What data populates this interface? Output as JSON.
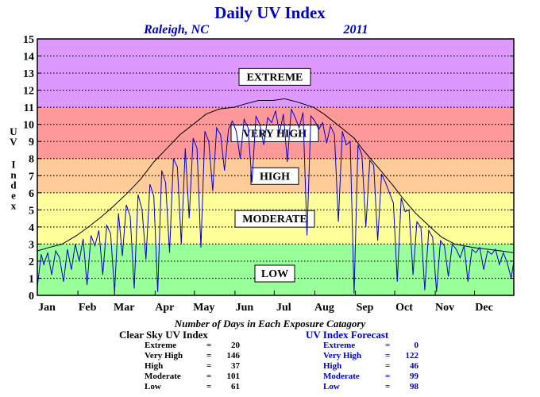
{
  "chart_data": {
    "type": "line",
    "title": "Daily UV Index",
    "location": "Raleigh, NC",
    "year": "2011",
    "ylabel": "UV Index",
    "ylim": [
      0,
      15
    ],
    "yticks": [
      0,
      1,
      2,
      3,
      4,
      5,
      6,
      7,
      8,
      9,
      10,
      11,
      12,
      13,
      14,
      15
    ],
    "xlim": [
      1,
      365
    ],
    "month_labels": [
      "Jan",
      "Feb",
      "Mar",
      "Apr",
      "May",
      "Jun",
      "Jul",
      "Aug",
      "Sep",
      "Oct",
      "Nov",
      "Dec"
    ],
    "month_starts": [
      1,
      32,
      60,
      91,
      121,
      152,
      182,
      213,
      244,
      274,
      305,
      335
    ],
    "grid": "horizontal dotted",
    "bands": [
      {
        "label": "LOW",
        "from": 0,
        "to": 3,
        "color": "#99ff99"
      },
      {
        "label": "MODERATE",
        "from": 3,
        "to": 6,
        "color": "#ffff99"
      },
      {
        "label": "HIGH",
        "from": 6,
        "to": 8,
        "color": "#ffcc99"
      },
      {
        "label": "VERY HIGH",
        "from": 8,
        "to": 11,
        "color": "#ff9999"
      },
      {
        "label": "EXTREME",
        "from": 11,
        "to": 15,
        "color": "#dd99ff"
      }
    ],
    "band_label_y": [
      1.3,
      4.5,
      7.0,
      9.5,
      12.8
    ],
    "series": [
      {
        "key": "clear_sky",
        "color": "#000000",
        "x": [
          1,
          10,
          20,
          31,
          40,
          50,
          59,
          70,
          80,
          90,
          100,
          110,
          120,
          130,
          140,
          151,
          160,
          170,
          181,
          190,
          200,
          212,
          220,
          230,
          243,
          250,
          260,
          273,
          280,
          290,
          304,
          310,
          320,
          334,
          345,
          355,
          365
        ],
        "y": [
          2.6,
          2.8,
          3.0,
          3.5,
          4.0,
          4.6,
          5.2,
          6.0,
          6.8,
          7.8,
          8.6,
          9.4,
          10.0,
          10.6,
          10.9,
          11.0,
          11.2,
          11.4,
          11.4,
          11.5,
          11.3,
          11.0,
          10.6,
          10.0,
          9.2,
          8.5,
          7.6,
          6.4,
          5.7,
          4.8,
          3.8,
          3.4,
          3.0,
          2.8,
          2.7,
          2.6,
          2.5
        ]
      },
      {
        "key": "forecast",
        "color": "#0000cc",
        "x": [
          1,
          4,
          6,
          9,
          12,
          15,
          18,
          21,
          24,
          27,
          30,
          33,
          36,
          39,
          42,
          45,
          48,
          51,
          54,
          57,
          60,
          63,
          66,
          69,
          72,
          75,
          78,
          81,
          84,
          87,
          90,
          93,
          96,
          99,
          102,
          105,
          108,
          111,
          114,
          117,
          120,
          123,
          126,
          129,
          132,
          135,
          138,
          141,
          144,
          147,
          150,
          153,
          156,
          159,
          162,
          165,
          168,
          171,
          174,
          177,
          180,
          183,
          186,
          189,
          192,
          195,
          198,
          201,
          204,
          207,
          210,
          213,
          216,
          219,
          222,
          225,
          228,
          231,
          234,
          237,
          240,
          243,
          246,
          249,
          252,
          255,
          258,
          261,
          264,
          267,
          270,
          273,
          276,
          279,
          282,
          285,
          288,
          291,
          294,
          297,
          300,
          303,
          306,
          309,
          312,
          315,
          318,
          321,
          324,
          327,
          330,
          333,
          336,
          339,
          342,
          345,
          348,
          351,
          354,
          357,
          360,
          363,
          365
        ],
        "y": [
          0.5,
          2.4,
          1.8,
          2.5,
          1.2,
          2.6,
          2.2,
          0.8,
          2.7,
          1.5,
          3.0,
          2.0,
          3.3,
          0.6,
          3.5,
          2.9,
          3.8,
          1.2,
          4.1,
          3.6,
          0.2,
          4.8,
          2.3,
          5.3,
          4.6,
          0.4,
          5.9,
          5.0,
          2.1,
          6.5,
          5.8,
          0.2,
          7.3,
          6.6,
          2.5,
          8.0,
          7.5,
          3.0,
          8.6,
          4.5,
          9.2,
          8.6,
          2.8,
          9.6,
          9.0,
          6.1,
          9.8,
          9.4,
          7.3,
          9.7,
          10.2,
          9.6,
          8.0,
          10.3,
          9.8,
          6.6,
          10.5,
          10.0,
          8.8,
          10.4,
          10.1,
          10.8,
          9.5,
          10.6,
          7.8,
          10.9,
          10.4,
          9.8,
          10.7,
          3.5,
          10.5,
          10.2,
          9.7,
          10.1,
          8.9,
          9.9,
          9.4,
          4.3,
          9.6,
          8.8,
          9.0,
          0.1,
          8.8,
          8.2,
          4.0,
          7.9,
          7.6,
          3.2,
          7.1,
          6.6,
          6.0,
          5.4,
          0.8,
          5.7,
          4.9,
          5.0,
          1.2,
          4.3,
          4.0,
          0.3,
          3.8,
          3.4,
          0.2,
          3.2,
          2.9,
          1.1,
          3.0,
          2.7,
          2.2,
          2.9,
          0.8,
          2.7,
          2.5,
          2.8,
          1.5,
          2.6,
          2.4,
          2.7,
          1.8,
          2.5,
          1.9,
          1.0,
          2.0
        ]
      }
    ]
  },
  "stats": {
    "heading": "Number of Days in Each Exposure Catagory",
    "clear_sky": {
      "title": "Clear Sky UV Index",
      "rows": [
        {
          "label": "Extreme",
          "value": "20"
        },
        {
          "label": "Very High",
          "value": "146"
        },
        {
          "label": "High",
          "value": "37"
        },
        {
          "label": "Moderate",
          "value": "101"
        },
        {
          "label": "Low",
          "value": "61"
        }
      ]
    },
    "forecast": {
      "title": "UV Index Forecast",
      "rows": [
        {
          "label": "Extreme",
          "value": "0"
        },
        {
          "label": "Very High",
          "value": "122"
        },
        {
          "label": "High",
          "value": "46"
        },
        {
          "label": "Moderate",
          "value": "99"
        },
        {
          "label": "Low",
          "value": "98"
        }
      ]
    }
  }
}
